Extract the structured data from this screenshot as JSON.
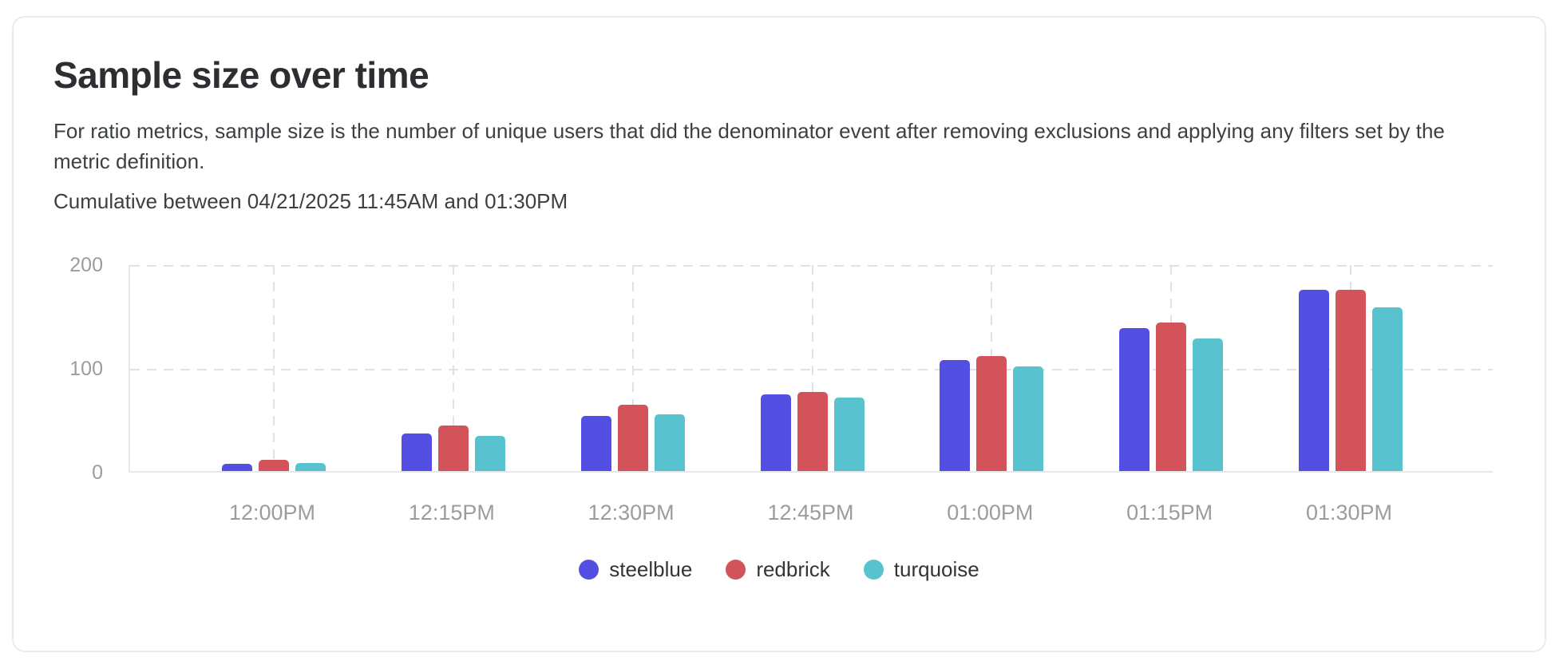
{
  "card": {
    "title": "Sample size over time",
    "description": "For ratio metrics, sample size is the number of unique users that did the denominator event after removing exclusions and applying any filters set by the metric definition.",
    "subtitle": "Cumulative between 04/21/2025 11:45AM and 01:30PM"
  },
  "chart_data": {
    "type": "bar",
    "title": "Sample size over time",
    "categories": [
      "12:00PM",
      "12:15PM",
      "12:30PM",
      "12:45PM",
      "01:00PM",
      "01:15PM",
      "01:30PM"
    ],
    "series": [
      {
        "name": "steelblue",
        "color": "#534fe3",
        "values": [
          7,
          36,
          53,
          74,
          107,
          138,
          175
        ]
      },
      {
        "name": "redbrick",
        "color": "#d2545a",
        "values": [
          11,
          44,
          64,
          76,
          111,
          143,
          175
        ]
      },
      {
        "name": "turquoise",
        "color": "#58c3ce",
        "values": [
          8,
          34,
          55,
          71,
          101,
          128,
          158
        ]
      }
    ],
    "xlabel": "",
    "ylabel": "",
    "ylim": [
      0,
      200
    ],
    "yticks": [
      0,
      100,
      200
    ],
    "grid": true,
    "grid_style": "dashed",
    "legend_position": "bottom",
    "axis_label_color": "#9c9c9e",
    "gridline_color": "#e2e2e4"
  }
}
